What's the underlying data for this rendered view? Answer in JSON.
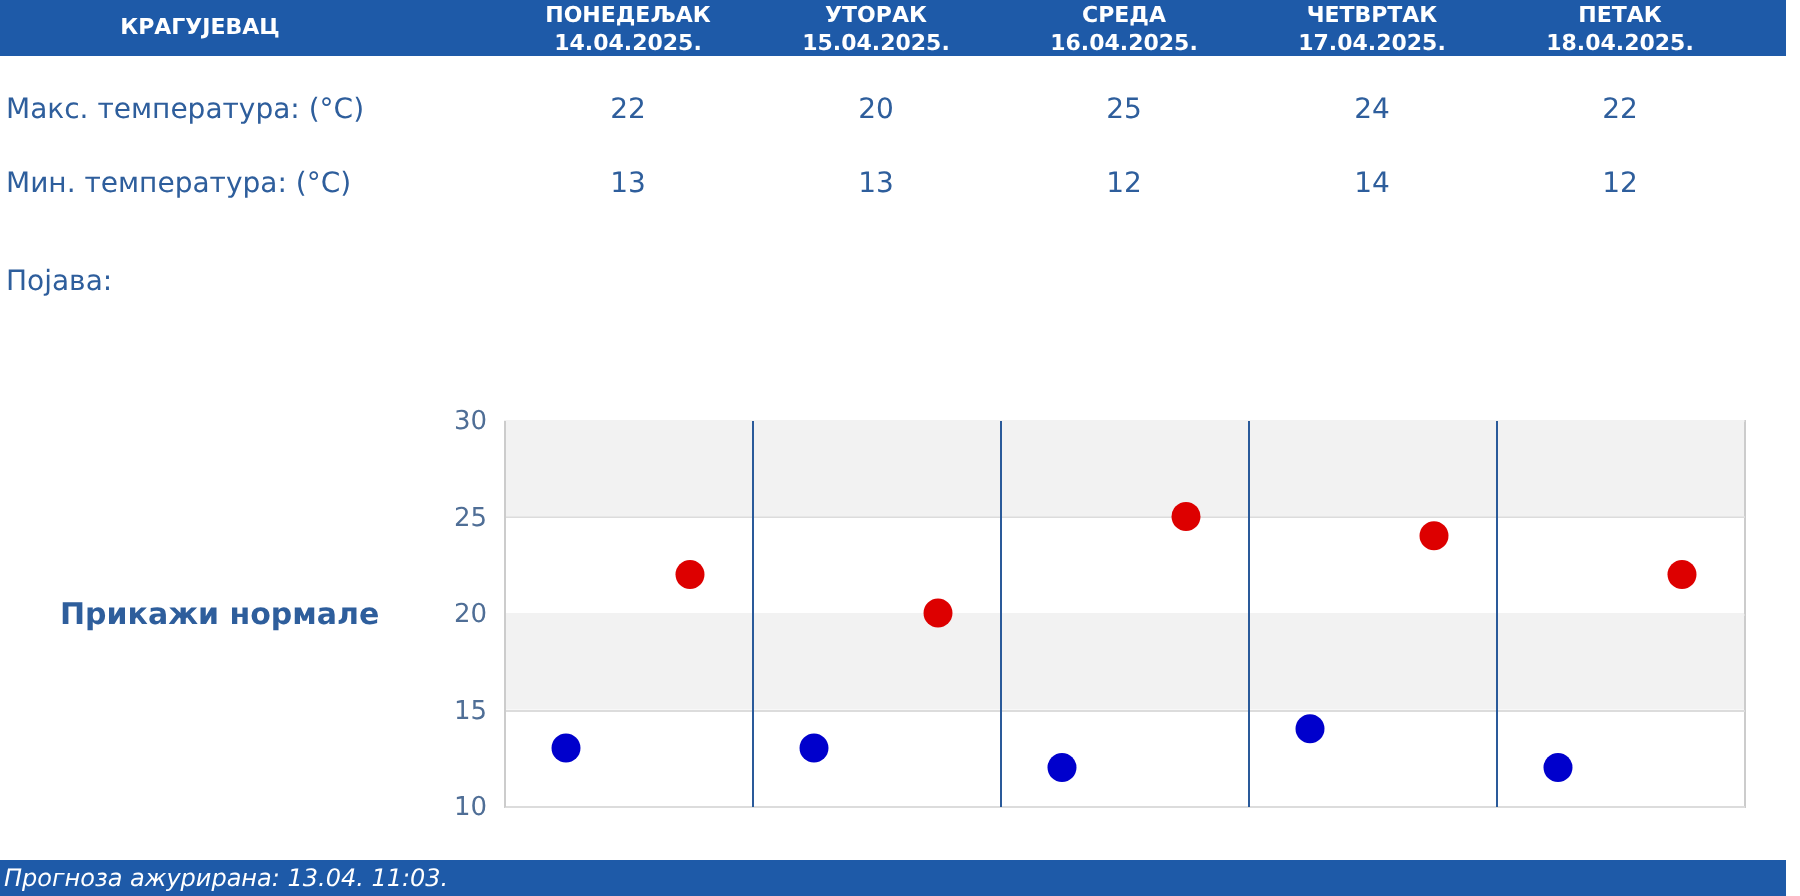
{
  "chart_data": {
    "type": "scatter",
    "title": "КРАГУЈЕВАЦ",
    "categories": [
      null,
      null,
      null,
      null,
      null
    ],
    "series": [
      {
        "color": "#dd0000",
        "values": [
          22,
          20,
          25,
          24,
          22
        ]
      },
      {
        "color": "#0000cc",
        "values": [
          13,
          13,
          12,
          14,
          12
        ]
      }
    ],
    "ylim": [
      10,
      30
    ],
    "yticks": [
      10,
      15,
      20,
      25,
      30
    ],
    "grid": true,
    "marker": "circle",
    "data_labels": true,
    "bands": [
      {
        "axis": "y",
        "from": 25,
        "to": 30,
        "color": "#f2f2f2"
      },
      {
        "axis": "y",
        "from": 15,
        "to": 20,
        "color": "#f2f2f2"
      }
    ],
    "annotations": [
      "ПОНЕДЕЉАК\n14.04.2025.",
      "УТОРАК\n15.04.2025.",
      "СРЕДА\n16.04.2025.",
      "ЧЕТВРТАК\n17.04.2025.",
      "ПЕТАК\n18.04.2025.",
      "Макс. температура: (°C)",
      "Мин. температура: (°C)",
      "Појава:",
      "Прикажи нормале",
      "Прогноза ажурирана: 13.04. 11:03."
    ]
  }
}
